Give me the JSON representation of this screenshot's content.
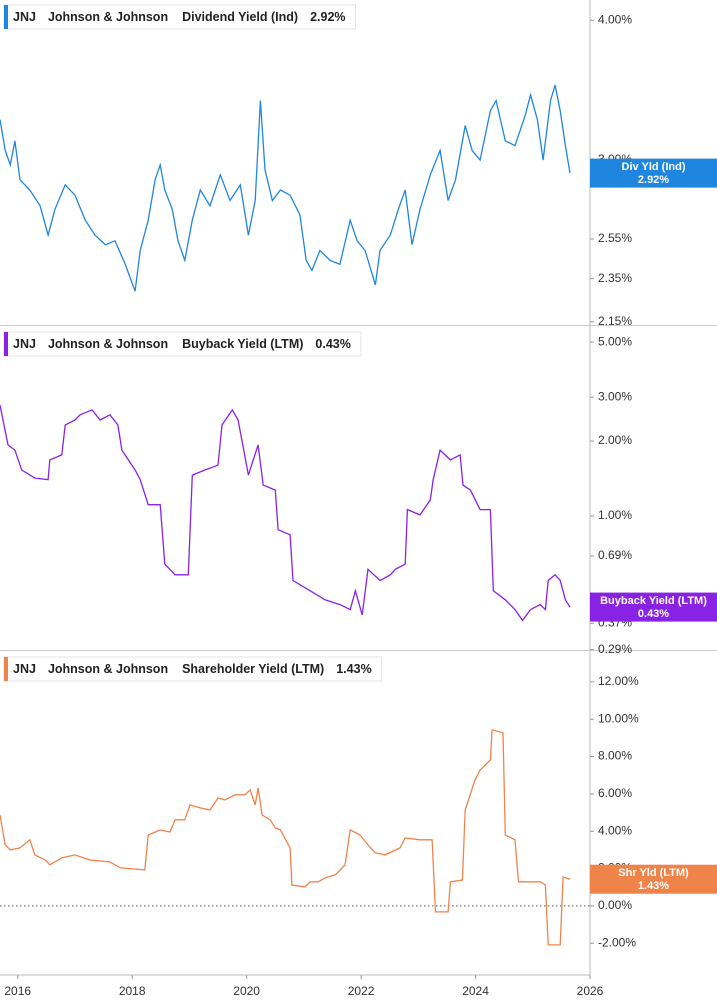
{
  "chart_data": [
    {
      "type": "line",
      "ticker": "JNJ",
      "company": "Johnson & Johnson",
      "badge": "Div Yld (Ind)",
      "current": {
        "value": 2.92,
        "label": "2.92%"
      },
      "log_scale": true,
      "xlim": [
        2015.69,
        2026.0
      ],
      "ylim": [
        2.136,
        4.17
      ],
      "yticks": [
        {
          "value": 4,
          "label": "4.00%"
        },
        {
          "value": 3,
          "label": "3.00%"
        },
        {
          "value": 2.55,
          "label": "2.55%"
        },
        {
          "value": 2.35,
          "label": "2.35%"
        },
        {
          "value": 2.15,
          "label": "2.15%"
        }
      ],
      "x": [
        2015.69,
        2015.78,
        2015.87,
        2015.95,
        2016.04,
        2016.21,
        2016.39,
        2016.53,
        2016.65,
        2016.83,
        2017.0,
        2017.18,
        2017.35,
        2017.53,
        2017.7,
        2017.88,
        2018.05,
        2018.14,
        2018.28,
        2018.4,
        2018.49,
        2018.57,
        2018.7,
        2018.8,
        2018.92,
        2019.05,
        2019.19,
        2019.36,
        2019.54,
        2019.71,
        2019.89,
        2020.03,
        2020.15,
        2020.24,
        2020.32,
        2020.45,
        2020.59,
        2020.76,
        2020.93,
        2021.04,
        2021.14,
        2021.28,
        2021.46,
        2021.63,
        2021.81,
        2021.93,
        2022.07,
        2022.25,
        2022.33,
        2022.51,
        2022.65,
        2022.77,
        2022.89,
        2023.03,
        2023.21,
        2023.38,
        2023.52,
        2023.65,
        2023.82,
        2023.94,
        2024.08,
        2024.26,
        2024.36,
        2024.52,
        2024.69,
        2024.87,
        2024.96,
        2025.08,
        2025.18,
        2025.31,
        2025.39,
        2025.48,
        2025.57,
        2025.65
      ],
      "series": [
        {
          "name": "Dividend Yield (Ind)",
          "color": "#1f86e0",
          "values": [
            3.26,
            3.06,
            2.97,
            3.12,
            2.88,
            2.82,
            2.73,
            2.57,
            2.71,
            2.85,
            2.79,
            2.65,
            2.57,
            2.52,
            2.54,
            2.42,
            2.29,
            2.49,
            2.65,
            2.88,
            2.97,
            2.82,
            2.71,
            2.54,
            2.44,
            2.65,
            2.82,
            2.73,
            2.91,
            2.76,
            2.85,
            2.57,
            2.76,
            3.39,
            2.94,
            2.76,
            2.82,
            2.79,
            2.68,
            2.44,
            2.39,
            2.49,
            2.44,
            2.42,
            2.65,
            2.54,
            2.49,
            2.32,
            2.49,
            2.57,
            2.71,
            2.82,
            2.52,
            2.71,
            2.91,
            3.06,
            2.76,
            2.88,
            3.22,
            3.06,
            3.0,
            3.32,
            3.39,
            3.12,
            3.09,
            3.29,
            3.43,
            3.26,
            3.0,
            3.39,
            3.5,
            3.32,
            3.09,
            2.92
          ]
        }
      ]
    },
    {
      "type": "line",
      "ticker": "JNJ",
      "company": "Johnson & Johnson",
      "badge": "Buyback Yield (LTM)",
      "current": {
        "value": 0.43,
        "label": "0.43%"
      },
      "log_scale": true,
      "xlim": [
        2015.69,
        2026.0
      ],
      "ylim": [
        0.289,
        5.75
      ],
      "yticks": [
        {
          "value": 5,
          "label": "5.00%"
        },
        {
          "value": 3,
          "label": "3.00%"
        },
        {
          "value": 2,
          "label": "2.00%"
        },
        {
          "value": 1,
          "label": "1.00%"
        },
        {
          "value": 0.69,
          "label": "0.69%"
        },
        {
          "value": 0.37,
          "label": "0.37%"
        },
        {
          "value": 0.29,
          "label": "0.29%"
        }
      ],
      "x": [
        2015.69,
        2015.83,
        2015.95,
        2016.07,
        2016.3,
        2016.53,
        2016.56,
        2016.77,
        2016.83,
        2017.0,
        2017.09,
        2017.3,
        2017.44,
        2017.61,
        2017.75,
        2017.82,
        2018.05,
        2018.14,
        2018.28,
        2018.49,
        2018.57,
        2018.75,
        2018.98,
        2019.05,
        2019.27,
        2019.5,
        2019.57,
        2019.75,
        2019.85,
        2020.03,
        2020.2,
        2020.29,
        2020.5,
        2020.55,
        2020.76,
        2020.81,
        2021.11,
        2021.37,
        2021.63,
        2021.81,
        2021.9,
        2022.02,
        2022.12,
        2022.33,
        2022.51,
        2022.6,
        2022.77,
        2022.81,
        2023.03,
        2023.21,
        2023.26,
        2023.38,
        2023.56,
        2023.73,
        2023.78,
        2023.91,
        2024.08,
        2024.26,
        2024.31,
        2024.52,
        2024.69,
        2024.82,
        2024.96,
        2025.13,
        2025.22,
        2025.27,
        2025.39,
        2025.48,
        2025.57,
        2025.65
      ],
      "series": [
        {
          "name": "Buyback Yield (LTM)",
          "color": "#8a22e6",
          "values": [
            2.79,
            1.93,
            1.84,
            1.53,
            1.42,
            1.4,
            1.68,
            1.76,
            2.32,
            2.43,
            2.55,
            2.67,
            2.43,
            2.55,
            2.32,
            1.84,
            1.53,
            1.4,
            1.11,
            1.11,
            0.64,
            0.58,
            0.58,
            1.46,
            1.53,
            1.6,
            2.32,
            2.67,
            2.43,
            1.46,
            1.93,
            1.33,
            1.27,
            0.88,
            0.84,
            0.55,
            0.5,
            0.46,
            0.44,
            0.42,
            0.5,
            0.4,
            0.61,
            0.55,
            0.58,
            0.61,
            0.64,
            1.06,
            1.01,
            1.16,
            1.4,
            1.84,
            1.68,
            1.76,
            1.33,
            1.27,
            1.06,
            1.06,
            0.5,
            0.46,
            0.42,
            0.38,
            0.42,
            0.44,
            0.42,
            0.55,
            0.58,
            0.55,
            0.46,
            0.43
          ]
        }
      ]
    },
    {
      "type": "line",
      "ticker": "JNJ",
      "company": "Johnson & Johnson",
      "badge": "Shr Yld (LTM)",
      "current": {
        "value": 1.43,
        "label": "1.43%"
      },
      "log_scale": false,
      "zero_line": true,
      "xlim": [
        2015.69,
        2026.0
      ],
      "ylim": [
        -3.7,
        13.6
      ],
      "yticks": [
        {
          "value": 12,
          "label": "12.00%"
        },
        {
          "value": 10,
          "label": "10.00%"
        },
        {
          "value": 8,
          "label": "8.00%"
        },
        {
          "value": 6,
          "label": "6.00%"
        },
        {
          "value": 4,
          "label": "4.00%"
        },
        {
          "value": 2,
          "label": "2.00%"
        },
        {
          "value": 0,
          "label": "0.00%"
        },
        {
          "value": -2,
          "label": "-2.00%"
        }
      ],
      "xticks": [
        2016,
        2018,
        2020,
        2022,
        2024,
        2026
      ],
      "x": [
        2015.69,
        2015.78,
        2015.87,
        2016.04,
        2016.21,
        2016.3,
        2016.48,
        2016.56,
        2016.77,
        2017.0,
        2017.26,
        2017.61,
        2017.79,
        2018.22,
        2018.28,
        2018.49,
        2018.66,
        2018.75,
        2018.92,
        2019.01,
        2019.19,
        2019.36,
        2019.5,
        2019.62,
        2019.8,
        2019.97,
        2020.06,
        2020.15,
        2020.2,
        2020.27,
        2020.41,
        2020.5,
        2020.59,
        2020.76,
        2020.79,
        2021.02,
        2021.11,
        2021.25,
        2021.37,
        2021.55,
        2021.72,
        2021.81,
        2021.98,
        2022.12,
        2022.25,
        2022.42,
        2022.68,
        2022.77,
        2023.03,
        2023.24,
        2023.3,
        2023.52,
        2023.56,
        2023.77,
        2023.82,
        2023.99,
        2024.08,
        2024.26,
        2024.29,
        2024.48,
        2024.52,
        2024.69,
        2024.75,
        2024.96,
        2025.13,
        2025.22,
        2025.27,
        2025.48,
        2025.53,
        2025.65
      ],
      "series": [
        {
          "name": "Shareholder Yield (LTM)",
          "color": "#f0834a",
          "values": [
            4.87,
            3.27,
            3.0,
            3.11,
            3.54,
            2.73,
            2.46,
            2.2,
            2.57,
            2.73,
            2.46,
            2.36,
            2.04,
            1.93,
            3.8,
            4.07,
            3.96,
            4.61,
            4.61,
            5.41,
            5.25,
            5.14,
            5.78,
            5.68,
            5.95,
            5.95,
            6.21,
            5.41,
            6.32,
            4.87,
            4.61,
            4.18,
            4.07,
            3.11,
            1.12,
            1.02,
            1.29,
            1.29,
            1.5,
            1.66,
            2.2,
            4.07,
            3.8,
            3.27,
            2.84,
            2.73,
            3.11,
            3.64,
            3.54,
            3.54,
            -0.32,
            -0.32,
            1.29,
            1.39,
            5.14,
            6.75,
            7.28,
            7.82,
            9.43,
            9.27,
            3.8,
            3.54,
            1.29,
            1.29,
            1.29,
            1.12,
            -2.09,
            -2.09,
            1.55,
            1.43
          ]
        }
      ]
    }
  ]
}
